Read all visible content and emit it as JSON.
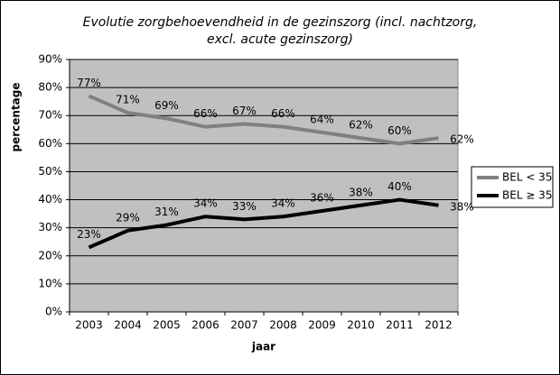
{
  "chart_data": {
    "type": "line",
    "title": [
      "Evolutie zorgbehoevendheid in de gezinszorg (incl. nachtzorg,",
      "excl. acute gezinszorg)"
    ],
    "y_label": "percentage",
    "x_label": "jaar",
    "categories": [
      "2003",
      "2004",
      "2005",
      "2006",
      "2007",
      "2008",
      "2009",
      "2010",
      "2011",
      "2012"
    ],
    "series": [
      {
        "name": "BEL < 35",
        "color": "#808080",
        "values": [
          77,
          71,
          69,
          66,
          67,
          66,
          64,
          62,
          60,
          62
        ],
        "value_labels": [
          "77%",
          "71%",
          "69%",
          "66%",
          "67%",
          "66%",
          "64%",
          "62%",
          "60%",
          "62%"
        ]
      },
      {
        "name": "BEL ≥ 35",
        "color": "#000000",
        "values": [
          23,
          29,
          31,
          34,
          33,
          34,
          36,
          38,
          40,
          38
        ],
        "value_labels": [
          "23%",
          "29%",
          "31%",
          "34%",
          "33%",
          "34%",
          "36%",
          "38%",
          "40%",
          "38%"
        ]
      }
    ],
    "ylim": [
      0,
      90
    ],
    "yticks": [
      {
        "value": 0,
        "label": "0%"
      },
      {
        "value": 10,
        "label": "10%"
      },
      {
        "value": 20,
        "label": "20%"
      },
      {
        "value": 30,
        "label": "30%"
      },
      {
        "value": 40,
        "label": "40%"
      },
      {
        "value": 50,
        "label": "50%"
      },
      {
        "value": 60,
        "label": "60%"
      },
      {
        "value": 70,
        "label": "70%"
      },
      {
        "value": 80,
        "label": "80%"
      },
      {
        "value": 90,
        "label": "90%"
      }
    ],
    "grid": true,
    "legend": "right",
    "plot_background": "#c0c0c0"
  }
}
